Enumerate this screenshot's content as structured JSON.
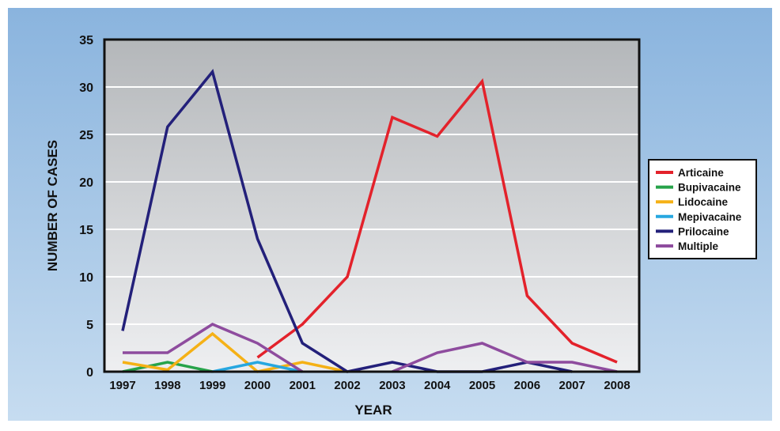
{
  "chart_data": {
    "type": "line",
    "title": "",
    "xlabel": "YEAR",
    "ylabel": "NUMBER OF CASES",
    "x": [
      "1997",
      "1998",
      "1999",
      "2000",
      "2001",
      "2002",
      "2003",
      "2004",
      "2005",
      "2006",
      "2007",
      "2008"
    ],
    "ylim": [
      0,
      35
    ],
    "yticks": [
      "0",
      "5",
      "10",
      "15",
      "20",
      "25",
      "30",
      "35"
    ],
    "grid": true,
    "legend_position": "right",
    "series": [
      {
        "name": "Articaine",
        "color": "#e3222b",
        "values": [
          null,
          null,
          null,
          1.5,
          5,
          10,
          26.8,
          24.8,
          30.6,
          8,
          3,
          1
        ]
      },
      {
        "name": "Bupivacaine",
        "color": "#27a34a",
        "values": [
          0,
          1,
          0,
          null,
          null,
          null,
          null,
          null,
          null,
          null,
          null,
          null
        ]
      },
      {
        "name": "Lidocaine",
        "color": "#f5b116",
        "values": [
          1,
          0.2,
          4,
          0,
          1,
          0,
          null,
          null,
          null,
          null,
          null,
          null
        ]
      },
      {
        "name": "Mepivacaine",
        "color": "#27a7e0",
        "values": [
          null,
          null,
          0,
          1,
          0,
          null,
          null,
          null,
          null,
          null,
          null,
          null
        ]
      },
      {
        "name": "Prilocaine",
        "color": "#23207a",
        "values": [
          4.3,
          25.8,
          31.6,
          14,
          3,
          0,
          1,
          0,
          0,
          1,
          0,
          null
        ]
      },
      {
        "name": "Multiple",
        "color": "#8e4c9e",
        "values": [
          2,
          2,
          5,
          3,
          0,
          null,
          0,
          2,
          3,
          1,
          1,
          0
        ]
      }
    ]
  }
}
